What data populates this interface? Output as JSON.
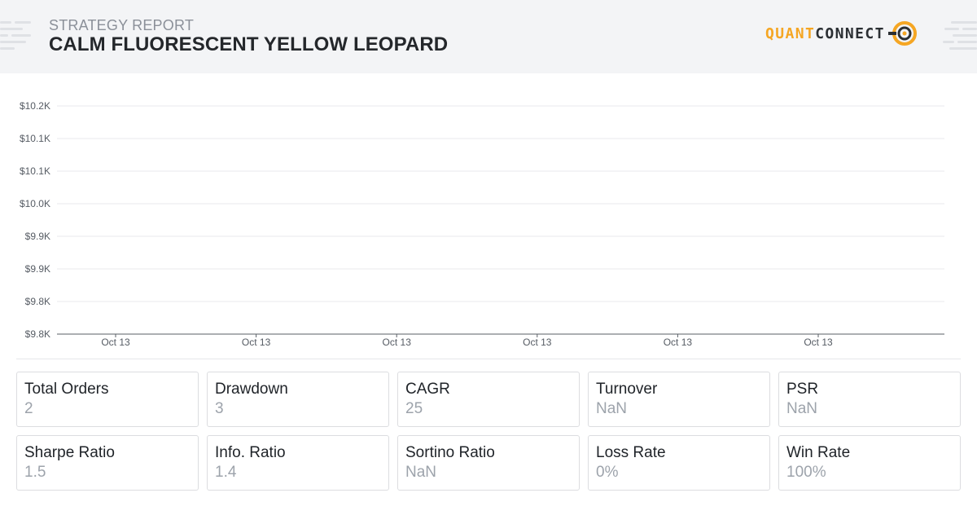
{
  "report": {
    "subtitle": "STRATEGY REPORT",
    "title": "CALM FLUORESCENT YELLOW LEOPARD"
  },
  "logo": {
    "part1": "QUANT",
    "part2": "CONNECT",
    "icon": "quantconnect-logo-icon",
    "colors": {
      "accent": "#f5a623",
      "dark": "#2b2f33"
    }
  },
  "chart_data": {
    "type": "line",
    "title": "",
    "xlabel": "",
    "ylabel": "",
    "y_tick_labels": [
      "$10.2K",
      "$10.1K",
      "$10.1K",
      "$10.0K",
      "$9.9K",
      "$9.9K",
      "$9.8K",
      "$9.8K"
    ],
    "x_tick_labels": [
      "Oct 13",
      "Oct 13",
      "Oct 13",
      "Oct 13",
      "Oct 13",
      "Oct 13"
    ],
    "series": [],
    "grid": true
  },
  "stats": [
    {
      "label": "Total Orders",
      "value": "2"
    },
    {
      "label": "Drawdown",
      "value": "3"
    },
    {
      "label": "CAGR",
      "value": "25"
    },
    {
      "label": "Turnover",
      "value": "NaN"
    },
    {
      "label": "PSR",
      "value": "NaN"
    },
    {
      "label": "Sharpe Ratio",
      "value": "1.5"
    },
    {
      "label": "Info. Ratio",
      "value": "1.4"
    },
    {
      "label": "Sortino Ratio",
      "value": "NaN"
    },
    {
      "label": "Loss Rate",
      "value": "0%"
    },
    {
      "label": "Win Rate",
      "value": "100%"
    }
  ]
}
